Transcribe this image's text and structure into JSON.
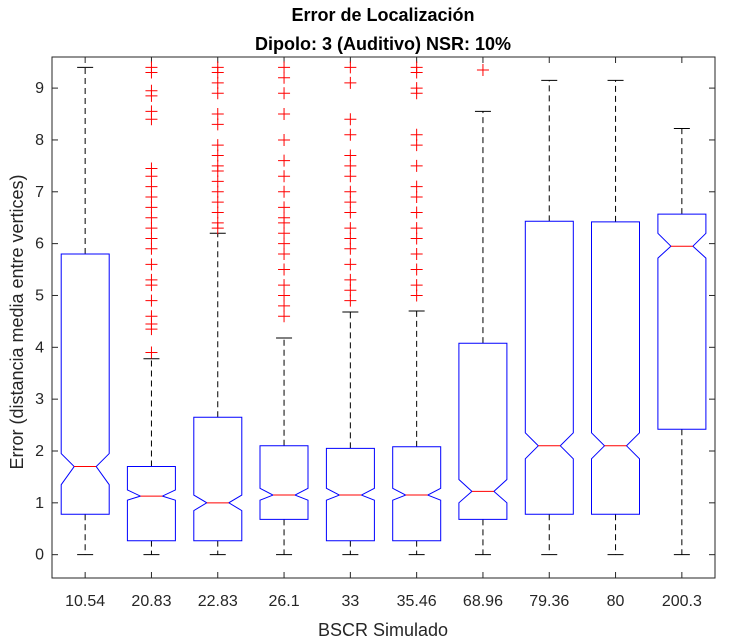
{
  "chart_data": {
    "type": "box",
    "title": "Error de Localización",
    "subtitle": "Dipolo: 3 (Auditivo) NSR: 10%",
    "xlabel": "BSCR Simulado",
    "ylabel": "Error (distancia media entre vertices)",
    "categories": [
      "10.54",
      "20.83",
      "22.83",
      "26.1",
      "33",
      "35.46",
      "68.96",
      "79.36",
      "80",
      "200.3"
    ],
    "ylim": [
      -0.45,
      9.6
    ],
    "yticks": [
      0,
      1,
      2,
      3,
      4,
      5,
      6,
      7,
      8,
      9
    ],
    "grid": false,
    "notched": true,
    "colors": {
      "box": "#0000ff",
      "median": "#ff0000",
      "whisker": "#000000",
      "outlier": "#ff0000",
      "axis": "#262626"
    },
    "boxes": [
      {
        "whisker_low": 0,
        "q1": 0.78,
        "median": 1.7,
        "q3": 5.8,
        "whisker_high": 9.4,
        "notch_low": 1.35,
        "notch_high": 1.95,
        "outliers": []
      },
      {
        "whisker_low": 0,
        "q1": 0.27,
        "median": 1.13,
        "q3": 1.7,
        "whisker_high": 3.78,
        "notch_low": 1.05,
        "notch_high": 1.25,
        "outliers": [
          3.9,
          4.35,
          4.45,
          4.6,
          4.9,
          5.2,
          5.3,
          5.6,
          5.9,
          6.1,
          6.3,
          6.5,
          6.7,
          6.9,
          7.1,
          7.3,
          7.45,
          8.4,
          8.55,
          8.85,
          8.95,
          9.3,
          9.4
        ]
      },
      {
        "whisker_low": 0,
        "q1": 0.27,
        "median": 1.0,
        "q3": 2.65,
        "whisker_high": 6.2,
        "notch_low": 0.85,
        "notch_high": 1.15,
        "outliers": [
          6.3,
          6.4,
          6.6,
          6.8,
          7.0,
          7.2,
          7.4,
          7.5,
          7.7,
          7.9,
          8.3,
          8.5,
          8.9,
          9.1,
          9.3,
          9.4
        ]
      },
      {
        "whisker_low": 0,
        "q1": 0.68,
        "median": 1.15,
        "q3": 2.1,
        "whisker_high": 4.18,
        "notch_low": 1.05,
        "notch_high": 1.28,
        "outliers": [
          4.6,
          4.8,
          5.0,
          5.2,
          5.5,
          5.8,
          6.0,
          6.2,
          6.4,
          6.5,
          6.7,
          7.0,
          7.3,
          7.6,
          8.0,
          8.5,
          8.9,
          9.2,
          9.4
        ]
      },
      {
        "whisker_low": 0,
        "q1": 0.27,
        "median": 1.15,
        "q3": 2.05,
        "whisker_high": 4.68,
        "notch_low": 1.05,
        "notch_high": 1.28,
        "outliers": [
          4.9,
          5.1,
          5.3,
          5.6,
          5.9,
          6.1,
          6.3,
          6.6,
          6.8,
          7.0,
          7.3,
          7.5,
          7.7,
          8.1,
          8.4,
          9.1,
          9.4
        ]
      },
      {
        "whisker_low": 0,
        "q1": 0.27,
        "median": 1.15,
        "q3": 2.08,
        "whisker_high": 4.7,
        "notch_low": 1.05,
        "notch_high": 1.28,
        "outliers": [
          5.0,
          5.2,
          5.5,
          5.8,
          6.1,
          6.3,
          6.6,
          6.9,
          7.1,
          7.5,
          7.9,
          8.1,
          8.9,
          9.0,
          9.3,
          9.4
        ]
      },
      {
        "whisker_low": 0,
        "q1": 0.68,
        "median": 1.22,
        "q3": 4.08,
        "whisker_high": 8.55,
        "notch_low": 1.0,
        "notch_high": 1.45,
        "outliers": [
          9.35
        ]
      },
      {
        "whisker_low": 0,
        "q1": 0.78,
        "median": 2.1,
        "q3": 6.43,
        "whisker_high": 9.15,
        "notch_low": 1.85,
        "notch_high": 2.35,
        "outliers": []
      },
      {
        "whisker_low": 0,
        "q1": 0.78,
        "median": 2.1,
        "q3": 6.42,
        "whisker_high": 9.15,
        "notch_low": 1.85,
        "notch_high": 2.35,
        "outliers": []
      },
      {
        "whisker_low": 0,
        "q1": 2.42,
        "median": 5.95,
        "q3": 6.57,
        "whisker_high": 8.22,
        "notch_low": 5.72,
        "notch_high": 6.2,
        "outliers": []
      }
    ]
  }
}
